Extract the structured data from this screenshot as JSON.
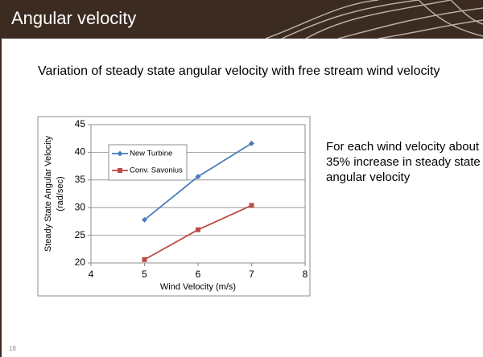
{
  "slide_title": "Angular velocity",
  "subtitle": "Variation of steady state angular velocity with free stream wind velocity",
  "note": "For each wind velocity about 35% increase in steady state angular velocity",
  "slide_number": "18",
  "chart_data": {
    "type": "line",
    "xlabel": "Wind Velocity (m/s)",
    "ylabel": [
      "Steady State Angular Velocity",
      "(rad/sec)"
    ],
    "x": [
      5,
      6,
      7
    ],
    "series": [
      {
        "name": "New Turbine",
        "color": "#4a7ebb",
        "marker": "diamond",
        "values": [
          27.8,
          35.6,
          41.6
        ]
      },
      {
        "name": "Conv. Savonius",
        "color": "#be4b48",
        "marker": "square",
        "values": [
          20.6,
          26,
          30.4
        ]
      }
    ],
    "xlim": [
      4,
      8
    ],
    "xticks": [
      4,
      5,
      6,
      7,
      8
    ],
    "ylim": [
      20,
      45
    ],
    "yticks": [
      20,
      25,
      30,
      35,
      40,
      45
    ],
    "grid": true
  }
}
